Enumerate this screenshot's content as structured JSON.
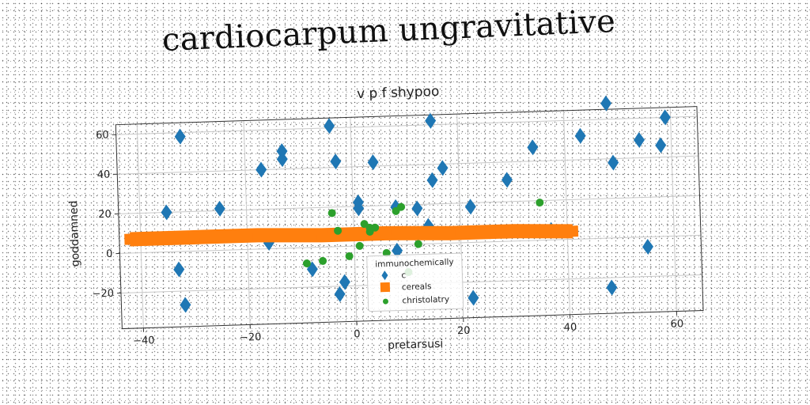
{
  "title": "cardiocarpum ungravitative",
  "colors": {
    "series_c": "#1f77b4",
    "series_cereals": "#ff7f0e",
    "series_christolatry": "#2ca02c",
    "grid": "#c8c8c8"
  },
  "chart_data": {
    "type": "scatter",
    "title": "v  p  f  shypoo",
    "xlabel": "pretarsusi",
    "ylabel": "goddamned",
    "xlim": [
      -44,
      65
    ],
    "ylim": [
      -38,
      65
    ],
    "xticks": [
      -40,
      -20,
      0,
      20,
      40,
      60
    ],
    "yticks": [
      -20,
      0,
      20,
      40,
      60
    ],
    "grid": true,
    "legend": {
      "title": "immunochemically",
      "placement": "lower-center"
    },
    "series": [
      {
        "name": "c",
        "marker": "diamond",
        "points": [
          [
            -32,
            58
          ],
          [
            -35,
            20
          ],
          [
            -25,
            21
          ],
          [
            -33,
            -9
          ],
          [
            -32,
            -27
          ],
          [
            -17,
            40
          ],
          [
            -13,
            49
          ],
          [
            -13,
            45
          ],
          [
            -16,
            3
          ],
          [
            -8,
            -11
          ],
          [
            -4,
            61
          ],
          [
            -3,
            43
          ],
          [
            -2,
            -18
          ],
          [
            -3,
            -24
          ],
          [
            1,
            22
          ],
          [
            1,
            19
          ],
          [
            4,
            42
          ],
          [
            8,
            19
          ],
          [
            8,
            -3
          ],
          [
            12,
            18
          ],
          [
            15,
            32
          ],
          [
            15,
            62
          ],
          [
            17,
            38
          ],
          [
            14,
            9
          ],
          [
            22,
            18
          ],
          [
            22,
            -28
          ],
          [
            29,
            31
          ],
          [
            34,
            47
          ],
          [
            37,
            5
          ],
          [
            43,
            52
          ],
          [
            48,
            68
          ],
          [
            49,
            38
          ],
          [
            48,
            -25
          ],
          [
            54,
            49
          ],
          [
            55,
            -5
          ],
          [
            58,
            46
          ],
          [
            59,
            60
          ]
        ]
      },
      {
        "name": "cereals",
        "marker": "square",
        "points": [
          [
            -42,
            7
          ],
          [
            -30,
            7
          ],
          [
            -18,
            7
          ],
          [
            -6,
            6
          ],
          [
            6,
            6
          ],
          [
            18,
            5
          ],
          [
            30,
            5
          ],
          [
            41,
            4
          ]
        ]
      },
      {
        "name": "christolatry",
        "marker": "circle",
        "points": [
          [
            -4,
            17
          ],
          [
            -3,
            8
          ],
          [
            -1,
            -5
          ],
          [
            2,
            11
          ],
          [
            3,
            7
          ],
          [
            3,
            9
          ],
          [
            4,
            9
          ],
          [
            8,
            17
          ],
          [
            9,
            19
          ],
          [
            6,
            -4
          ],
          [
            -6,
            -7
          ],
          [
            -9,
            -8
          ],
          [
            1,
            0
          ],
          [
            12,
            0
          ],
          [
            10,
            -14
          ],
          [
            35,
            19
          ]
        ]
      }
    ]
  }
}
